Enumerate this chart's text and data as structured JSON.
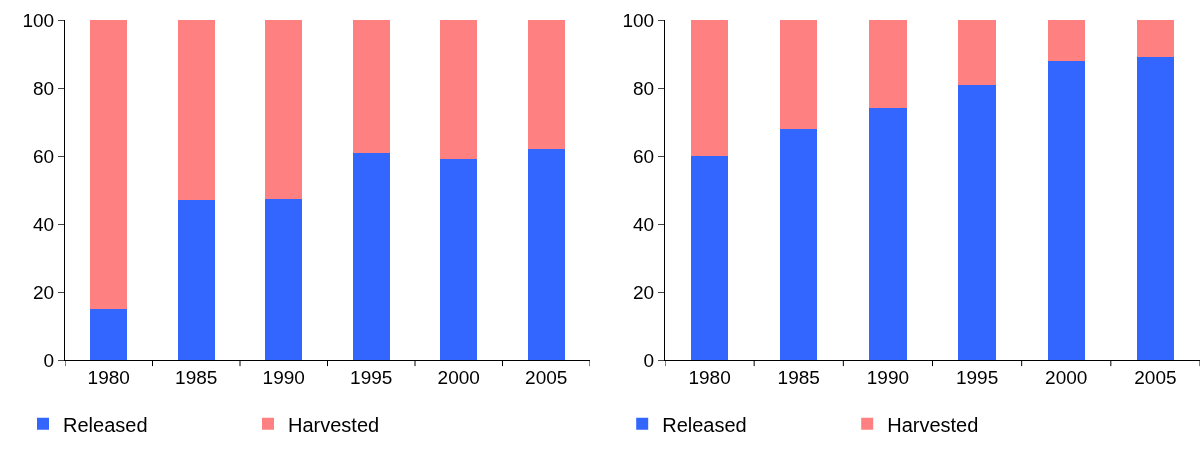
{
  "chart_data": [
    {
      "type": "bar",
      "stacked": true,
      "categories": [
        "1980",
        "1985",
        "1990",
        "1995",
        "2000",
        "2005"
      ],
      "series": [
        {
          "name": "Released",
          "color": "#3366ff",
          "values": [
            15,
            47,
            47.5,
            61,
            59,
            62
          ]
        },
        {
          "name": "Harvested",
          "color": "#ff8080",
          "values": [
            85,
            53,
            52.5,
            39,
            41,
            38
          ]
        }
      ],
      "ylim": [
        0,
        100
      ],
      "yticks": [
        0,
        20,
        40,
        60,
        80,
        100
      ],
      "grid": false,
      "legend": "bottom left"
    },
    {
      "type": "bar",
      "stacked": true,
      "categories": [
        "1980",
        "1985",
        "1990",
        "1995",
        "2000",
        "2005"
      ],
      "series": [
        {
          "name": "Released",
          "color": "#3366ff",
          "values": [
            60,
            68,
            74,
            81,
            88,
            89
          ]
        },
        {
          "name": "Harvested",
          "color": "#ff8080",
          "values": [
            40,
            32,
            26,
            19,
            12,
            11
          ]
        }
      ],
      "ylim": [
        0,
        100
      ],
      "yticks": [
        0,
        20,
        40,
        60,
        80,
        100
      ],
      "grid": false,
      "legend": "bottom left"
    }
  ]
}
